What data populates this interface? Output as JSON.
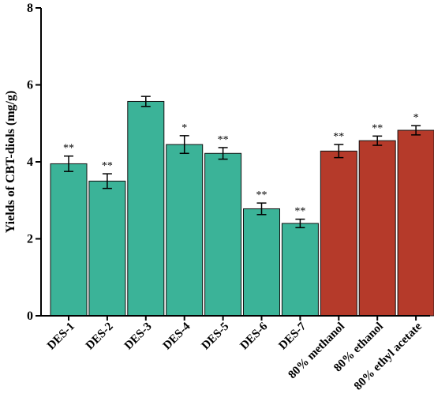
{
  "chart_data": {
    "type": "bar",
    "ylabel": "Yields of CBT-diols (mg/g)",
    "xlabel": "",
    "ylim": [
      0,
      8
    ],
    "yticks": [
      0,
      2,
      4,
      6,
      8
    ],
    "grid": false,
    "categories": [
      "DES-1",
      "DES-2",
      "DES-3",
      "DES-4",
      "DES-5",
      "DES-6",
      "DES-7",
      "80% methanol",
      "80% ethanol",
      "80% ethyl acetate"
    ],
    "values": [
      3.95,
      3.5,
      5.57,
      4.45,
      4.22,
      2.78,
      2.4,
      4.28,
      4.55,
      4.82
    ],
    "errors": [
      0.2,
      0.19,
      0.13,
      0.23,
      0.15,
      0.15,
      0.11,
      0.17,
      0.12,
      0.12
    ],
    "significance": [
      "**",
      "**",
      "",
      "*",
      "**",
      "**",
      "**",
      "**",
      "**",
      "*"
    ],
    "colors": [
      "#3bb398",
      "#3bb398",
      "#3bb398",
      "#3bb398",
      "#3bb398",
      "#3bb398",
      "#3bb398",
      "#b53a2a",
      "#b53a2a",
      "#b53a2a"
    ]
  }
}
